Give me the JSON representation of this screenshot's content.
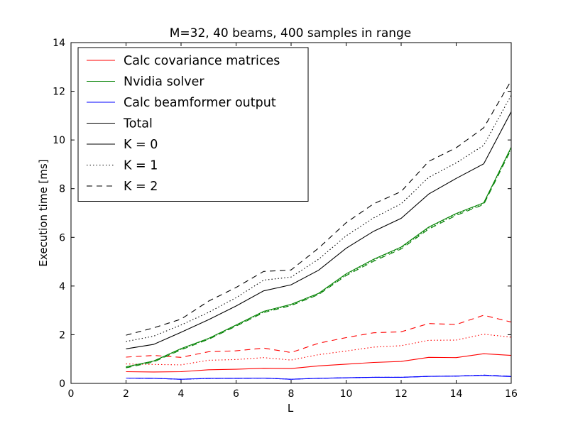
{
  "chart_data": {
    "type": "line",
    "title": "M=32, 40 beams, 400 samples in range",
    "xlabel": "L",
    "ylabel": "Execution time [ms]",
    "xlim": [
      0,
      16
    ],
    "ylim": [
      0,
      14
    ],
    "xticks": [
      0,
      2,
      4,
      6,
      8,
      10,
      12,
      14,
      16
    ],
    "yticks": [
      0,
      2,
      4,
      6,
      8,
      10,
      12,
      14
    ],
    "grid": false,
    "legend_position": "top-left",
    "x": [
      2,
      3,
      4,
      5,
      6,
      7,
      8,
      9,
      10,
      11,
      12,
      13,
      14,
      15,
      16
    ],
    "legend": [
      {
        "label": "Calc covariance matrices",
        "color": "#ff0000",
        "style": "solid"
      },
      {
        "label": "Nvidia solver",
        "color": "#008000",
        "style": "solid"
      },
      {
        "label": "Calc beamformer output",
        "color": "#0000ff",
        "style": "solid"
      },
      {
        "label": "Total",
        "color": "#000000",
        "style": "solid"
      },
      {
        "label": "K = 0",
        "color": "#000000",
        "style": "solid"
      },
      {
        "label": "K = 1",
        "color": "#000000",
        "style": "dotted"
      },
      {
        "label": "K = 2",
        "color": "#000000",
        "style": "dashed"
      }
    ],
    "series": [
      {
        "group": "Calc covariance matrices",
        "k": 0,
        "color": "#ff0000",
        "style": "solid",
        "values": [
          0.48,
          0.47,
          0.48,
          0.56,
          0.58,
          0.62,
          0.61,
          0.72,
          0.79,
          0.86,
          0.9,
          1.07,
          1.06,
          1.22,
          1.15
        ]
      },
      {
        "group": "Calc covariance matrices",
        "k": 1,
        "color": "#ff0000",
        "style": "dotted",
        "values": [
          0.8,
          0.78,
          0.76,
          0.95,
          0.98,
          1.06,
          0.96,
          1.18,
          1.33,
          1.49,
          1.55,
          1.77,
          1.78,
          2.02,
          1.9
        ]
      },
      {
        "group": "Calc covariance matrices",
        "k": 2,
        "color": "#ff0000",
        "style": "dashed",
        "values": [
          1.08,
          1.15,
          1.07,
          1.3,
          1.34,
          1.45,
          1.27,
          1.65,
          1.88,
          2.08,
          2.12,
          2.46,
          2.42,
          2.8,
          2.52
        ]
      },
      {
        "group": "Nvidia solver",
        "k": 0,
        "color": "#008000",
        "style": "solid",
        "values": [
          0.68,
          0.92,
          1.43,
          1.85,
          2.4,
          2.96,
          3.25,
          3.7,
          4.5,
          5.1,
          5.6,
          6.42,
          6.98,
          7.42,
          9.7
        ]
      },
      {
        "group": "Nvidia solver",
        "k": 1,
        "color": "#008000",
        "style": "dotted",
        "values": [
          0.66,
          0.9,
          1.4,
          1.83,
          2.37,
          2.93,
          3.22,
          3.67,
          4.46,
          5.06,
          5.56,
          6.38,
          6.94,
          7.38,
          9.66
        ]
      },
      {
        "group": "Nvidia solver",
        "k": 2,
        "color": "#008000",
        "style": "dashed",
        "values": [
          0.64,
          0.88,
          1.38,
          1.81,
          2.35,
          2.91,
          3.2,
          3.65,
          4.43,
          5.02,
          5.52,
          6.34,
          6.9,
          7.35,
          9.62
        ]
      },
      {
        "group": "Calc beamformer output",
        "k": 0,
        "color": "#0000ff",
        "style": "solid",
        "values": [
          0.22,
          0.21,
          0.17,
          0.21,
          0.21,
          0.22,
          0.17,
          0.21,
          0.23,
          0.25,
          0.25,
          0.29,
          0.3,
          0.33,
          0.28
        ]
      },
      {
        "group": "Calc beamformer output",
        "k": 1,
        "color": "#0000ff",
        "style": "dotted",
        "values": [
          0.22,
          0.21,
          0.17,
          0.2,
          0.21,
          0.22,
          0.17,
          0.21,
          0.23,
          0.25,
          0.25,
          0.29,
          0.3,
          0.34,
          0.29
        ]
      },
      {
        "group": "Calc beamformer output",
        "k": 2,
        "color": "#0000ff",
        "style": "dashed",
        "values": [
          0.22,
          0.21,
          0.17,
          0.2,
          0.21,
          0.22,
          0.17,
          0.21,
          0.23,
          0.25,
          0.25,
          0.29,
          0.3,
          0.34,
          0.29
        ]
      },
      {
        "group": "Total",
        "k": 0,
        "color": "#000000",
        "style": "solid",
        "values": [
          1.42,
          1.6,
          2.1,
          2.62,
          3.18,
          3.8,
          4.05,
          4.65,
          5.55,
          6.25,
          6.78,
          7.78,
          8.42,
          9.02,
          11.16
        ]
      },
      {
        "group": "Total",
        "k": 1,
        "color": "#000000",
        "style": "dotted",
        "values": [
          1.72,
          1.94,
          2.4,
          2.92,
          3.52,
          4.24,
          4.37,
          5.1,
          6.06,
          6.8,
          7.38,
          8.46,
          9.06,
          9.78,
          11.84
        ]
      },
      {
        "group": "Total",
        "k": 2,
        "color": "#000000",
        "style": "dashed",
        "values": [
          1.98,
          2.28,
          2.64,
          3.38,
          3.94,
          4.6,
          4.66,
          5.56,
          6.6,
          7.38,
          7.88,
          9.12,
          9.68,
          10.5,
          12.44
        ]
      }
    ]
  }
}
